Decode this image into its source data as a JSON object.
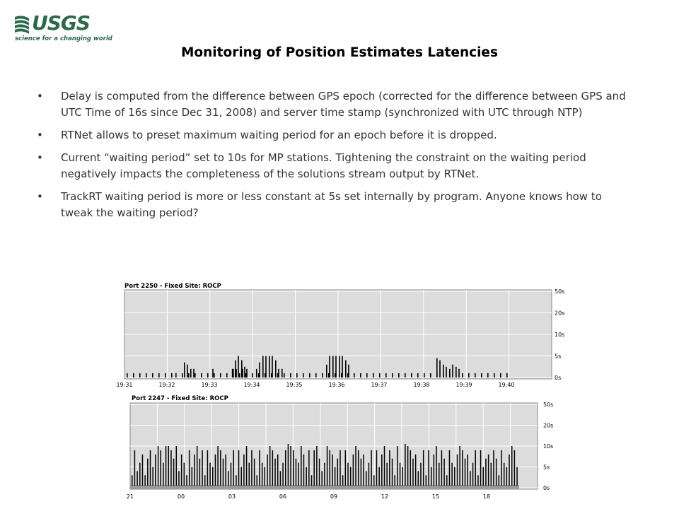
{
  "logo": {
    "text": "USGS",
    "tagline": "science for a changing world",
    "color": "#2a6a4a"
  },
  "title": "Monitoring of Position Estimates Latencies",
  "bullets": [
    "Delay  is computed from the difference  between GPS epoch (corrected for the difference  between GPS and UTC  Time of 16s since Dec 31, 2008) and server time stamp (synchronized with UTC through NTP)",
    "RTNet allows to preset maximum waiting period for an epoch before it is dropped.",
    "Current  “waiting period”  set to 10s for MP stations. Tightening  the constraint on the waiting period negatively impacts the completeness of the solutions stream output by RTNet.",
    "TrackRT waiting period is more or less constant at 5s set internally by program.  Anyone knows how to tweak the waiting period?"
  ],
  "chart_data": [
    {
      "type": "bar",
      "title": "Port 2250 - Fixed Site: ROCP",
      "x_tick_labels": [
        "19:31",
        "19:32",
        "19:33",
        "19:34",
        "19:35",
        "19:36",
        "19:37",
        "19:38",
        "19:39",
        "19:40"
      ],
      "y_tick_labels": [
        "50s",
        "20s",
        "10s",
        "5s",
        "0s"
      ],
      "grid": true,
      "bar_color": "#000000",
      "background": "#dcdcdc",
      "bars": [
        {
          "x": 0.0,
          "y": 1
        },
        {
          "x": 0.15,
          "y": 1
        },
        {
          "x": 0.3,
          "y": 1
        },
        {
          "x": 0.45,
          "y": 1
        },
        {
          "x": 0.6,
          "y": 1
        },
        {
          "x": 0.75,
          "y": 1
        },
        {
          "x": 0.9,
          "y": 1
        },
        {
          "x": 1.05,
          "y": 1
        },
        {
          "x": 1.15,
          "y": 1
        },
        {
          "x": 1.3,
          "y": 1
        },
        {
          "x": 1.45,
          "y": 1
        },
        {
          "x": 1.6,
          "y": 1
        },
        {
          "x": 1.75,
          "y": 1
        },
        {
          "x": 1.9,
          "y": 1
        },
        {
          "x": 2.05,
          "y": 1
        },
        {
          "x": 2.2,
          "y": 1
        },
        {
          "x": 2.35,
          "y": 1
        },
        {
          "x": 2.5,
          "y": 1
        },
        {
          "x": 2.65,
          "y": 1
        },
        {
          "x": 2.8,
          "y": 1
        },
        {
          "x": 2.95,
          "y": 1
        },
        {
          "x": 3.1,
          "y": 1
        },
        {
          "x": 3.25,
          "y": 1
        },
        {
          "x": 3.4,
          "y": 1
        },
        {
          "x": 3.55,
          "y": 1
        },
        {
          "x": 3.7,
          "y": 1
        },
        {
          "x": 3.85,
          "y": 1
        },
        {
          "x": 4.0,
          "y": 1
        },
        {
          "x": 4.15,
          "y": 1
        },
        {
          "x": 4.3,
          "y": 1
        },
        {
          "x": 4.45,
          "y": 1
        },
        {
          "x": 4.6,
          "y": 1
        },
        {
          "x": 4.75,
          "y": 1
        },
        {
          "x": 4.9,
          "y": 1
        },
        {
          "x": 5.05,
          "y": 1
        },
        {
          "x": 5.2,
          "y": 1
        },
        {
          "x": 5.35,
          "y": 1
        },
        {
          "x": 5.5,
          "y": 1
        },
        {
          "x": 5.65,
          "y": 1
        },
        {
          "x": 5.8,
          "y": 1
        },
        {
          "x": 5.95,
          "y": 1
        },
        {
          "x": 6.1,
          "y": 1
        },
        {
          "x": 6.25,
          "y": 1
        },
        {
          "x": 6.4,
          "y": 1
        },
        {
          "x": 6.55,
          "y": 1
        },
        {
          "x": 6.7,
          "y": 1
        },
        {
          "x": 6.85,
          "y": 1
        },
        {
          "x": 7.0,
          "y": 1
        },
        {
          "x": 7.15,
          "y": 1
        },
        {
          "x": 7.3,
          "y": 1
        },
        {
          "x": 7.45,
          "y": 1
        },
        {
          "x": 7.6,
          "y": 1
        },
        {
          "x": 7.75,
          "y": 1
        },
        {
          "x": 7.9,
          "y": 1
        },
        {
          "x": 8.05,
          "y": 1
        },
        {
          "x": 8.2,
          "y": 1
        },
        {
          "x": 8.35,
          "y": 1
        },
        {
          "x": 8.5,
          "y": 1
        },
        {
          "x": 8.65,
          "y": 1
        },
        {
          "x": 8.8,
          "y": 1
        },
        {
          "x": 8.95,
          "y": 1
        },
        {
          "x": 1.35,
          "y": 3.5
        },
        {
          "x": 1.42,
          "y": 3
        },
        {
          "x": 1.5,
          "y": 2
        },
        {
          "x": 1.57,
          "y": 2
        },
        {
          "x": 2.02,
          "y": 2
        },
        {
          "x": 2.48,
          "y": 2
        },
        {
          "x": 2.57,
          "y": 2
        },
        {
          "x": 2.72,
          "y": 2
        },
        {
          "x": 2.82,
          "y": 2
        },
        {
          "x": 2.5,
          "y": 2
        },
        {
          "x": 2.55,
          "y": 4
        },
        {
          "x": 2.62,
          "y": 5
        },
        {
          "x": 2.7,
          "y": 4
        },
        {
          "x": 2.77,
          "y": 2.5
        },
        {
          "x": 3.05,
          "y": 2
        },
        {
          "x": 3.12,
          "y": 3.5
        },
        {
          "x": 3.2,
          "y": 5
        },
        {
          "x": 3.27,
          "y": 5
        },
        {
          "x": 3.35,
          "y": 5
        },
        {
          "x": 3.42,
          "y": 5
        },
        {
          "x": 3.5,
          "y": 4
        },
        {
          "x": 3.57,
          "y": 2
        },
        {
          "x": 3.65,
          "y": 2
        },
        {
          "x": 4.7,
          "y": 3
        },
        {
          "x": 4.77,
          "y": 5
        },
        {
          "x": 4.85,
          "y": 5
        },
        {
          "x": 4.92,
          "y": 5
        },
        {
          "x": 5.0,
          "y": 5
        },
        {
          "x": 5.07,
          "y": 5
        },
        {
          "x": 5.15,
          "y": 4
        },
        {
          "x": 5.22,
          "y": 3
        },
        {
          "x": 7.3,
          "y": 4.5
        },
        {
          "x": 7.37,
          "y": 4
        },
        {
          "x": 7.45,
          "y": 3
        },
        {
          "x": 7.52,
          "y": 2.5
        },
        {
          "x": 7.6,
          "y": 2
        },
        {
          "x": 7.67,
          "y": 3
        },
        {
          "x": 7.75,
          "y": 2.5
        },
        {
          "x": 7.82,
          "y": 2
        }
      ]
    },
    {
      "type": "bar",
      "title": "Port 2247 - Fixed Site: ROCP",
      "x_tick_labels": [
        "21",
        "00",
        "03",
        "06",
        "09",
        "12",
        "15",
        "18"
      ],
      "y_tick_labels": [
        "50s",
        "20s",
        "10s",
        "5s",
        "0s"
      ],
      "grid": true,
      "bar_color": "#000000",
      "background": "#dcdcdc",
      "heights": [
        3,
        9,
        4,
        6,
        8,
        3,
        7,
        9,
        5,
        8,
        10,
        9,
        6,
        10,
        10,
        9,
        7,
        10,
        4,
        8,
        6,
        3,
        9,
        5,
        8,
        10,
        7,
        9,
        3,
        9,
        6,
        5,
        8,
        10,
        9,
        7,
        8,
        4,
        6,
        9,
        3,
        9,
        5,
        8,
        10,
        6,
        9,
        7,
        3,
        9,
        6,
        5,
        8,
        10,
        9,
        7,
        8,
        4,
        6,
        9,
        11,
        10,
        9,
        7,
        6,
        10,
        8,
        5,
        9,
        3,
        9,
        10,
        7,
        4,
        6,
        10,
        9,
        8,
        5,
        7,
        9,
        3,
        9,
        6,
        5,
        8,
        10,
        9,
        7,
        8,
        4,
        6,
        9,
        3,
        9,
        5,
        8,
        10,
        6,
        9,
        7,
        3,
        10,
        6,
        5,
        11,
        10,
        9,
        7,
        8,
        4,
        6,
        9,
        3,
        9,
        5,
        8,
        10,
        6,
        9,
        7,
        3,
        9,
        6,
        5,
        8,
        10,
        9,
        7,
        8,
        4,
        6,
        9,
        3,
        9,
        5,
        7,
        8,
        6,
        9,
        7,
        3,
        9,
        6,
        5,
        8,
        10,
        9,
        5
      ]
    }
  ]
}
